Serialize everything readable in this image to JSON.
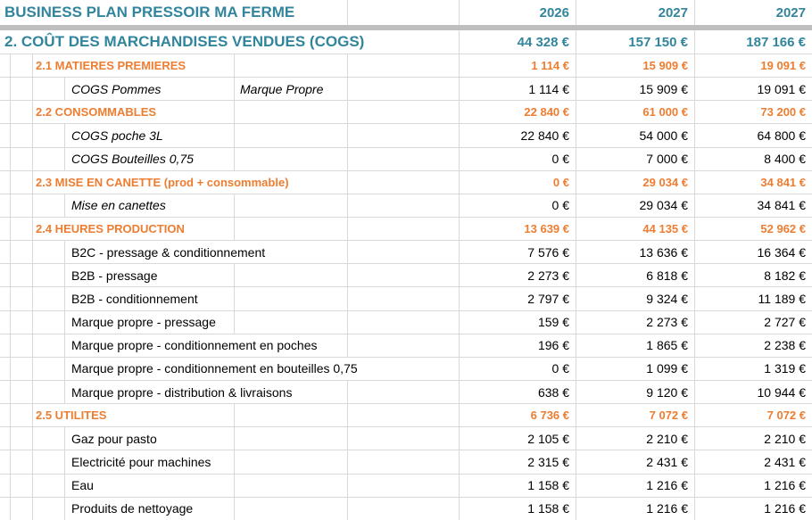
{
  "header": {
    "title": "BUSINESS PLAN PRESSOIR MA FERME",
    "years": [
      "2026",
      "2027",
      "2027"
    ]
  },
  "section": {
    "label": "2. COÛT DES MARCHANDISES VENDUES (COGS)",
    "values": [
      "44 328 €",
      "157 150 €",
      "187 166 €"
    ]
  },
  "rows": [
    {
      "type": "subsection",
      "label": "2.1 MATIERES PREMIERES",
      "values": [
        "1 114 €",
        "15 909 €",
        "19 091 €"
      ]
    },
    {
      "type": "item",
      "italic": true,
      "label": "COGS Pommes",
      "note": "Marque Propre",
      "values": [
        "1 114 €",
        "15 909 €",
        "19 091 €"
      ]
    },
    {
      "type": "subsection",
      "label": "2.2 CONSOMMABLES",
      "values": [
        "22 840 €",
        "61 000 €",
        "73 200 €"
      ]
    },
    {
      "type": "item",
      "italic": true,
      "label": "COGS poche 3L",
      "values": [
        "22 840 €",
        "54 000 €",
        "64 800 €"
      ]
    },
    {
      "type": "item",
      "italic": true,
      "label": "COGS Bouteilles 0,75",
      "values": [
        "0 €",
        "7 000 €",
        "8 400 €"
      ]
    },
    {
      "type": "subsection",
      "label": "2.3 MISE EN CANETTE (prod + consommable)",
      "values": [
        "0 €",
        "29 034 €",
        "34 841 €"
      ]
    },
    {
      "type": "item",
      "italic": true,
      "label": "Mise en canettes",
      "values": [
        "0 €",
        "29 034 €",
        "34 841 €"
      ]
    },
    {
      "type": "subsection",
      "label": "2.4 HEURES PRODUCTION",
      "values": [
        "13 639 €",
        "44 135 €",
        "52 962 €"
      ]
    },
    {
      "type": "item",
      "label": "B2C - pressage & conditionnement",
      "values": [
        "7 576 €",
        "13 636 €",
        "16 364 €"
      ]
    },
    {
      "type": "item",
      "label": "B2B - pressage",
      "values": [
        "2 273 €",
        "6 818 €",
        "8 182 €"
      ]
    },
    {
      "type": "item",
      "label": "B2B - conditionnement",
      "values": [
        "2 797 €",
        "9 324 €",
        "11 189 €"
      ]
    },
    {
      "type": "item",
      "label": "Marque propre - pressage",
      "values": [
        "159 €",
        "2 273 €",
        "2 727 €"
      ]
    },
    {
      "type": "item",
      "label": "Marque propre - conditionnement en poches",
      "values": [
        "196 €",
        "1 865 €",
        "2 238 €"
      ]
    },
    {
      "type": "item",
      "label": "Marque propre - conditionnement en bouteilles 0,75",
      "values": [
        "0 €",
        "1 099 €",
        "1 319 €"
      ]
    },
    {
      "type": "item",
      "label": "Marque propre - distribution & livraisons",
      "values": [
        "638 €",
        "9 120 €",
        "10 944 €"
      ]
    },
    {
      "type": "subsection",
      "label": "2.5 UTILITES",
      "values": [
        "6 736 €",
        "7 072 €",
        "7 072 €"
      ]
    },
    {
      "type": "item",
      "label": "Gaz pour pasto",
      "values": [
        "2 105 €",
        "2 210 €",
        "2 210 €"
      ]
    },
    {
      "type": "item",
      "label": "Electricité pour machines",
      "values": [
        "2 315 €",
        "2 431 €",
        "2 431 €"
      ]
    },
    {
      "type": "item",
      "label": "Eau",
      "values": [
        "1 158 €",
        "1 216 €",
        "1 216 €"
      ]
    },
    {
      "type": "item",
      "label": "Produits de nettoyage",
      "values": [
        "1 158 €",
        "1 216 €",
        "1 216 €"
      ]
    }
  ],
  "colors": {
    "teal": "#31859C",
    "orange": "#ED7D31",
    "gridline": "#D9D9D9",
    "separator": "#BFBFBF"
  }
}
